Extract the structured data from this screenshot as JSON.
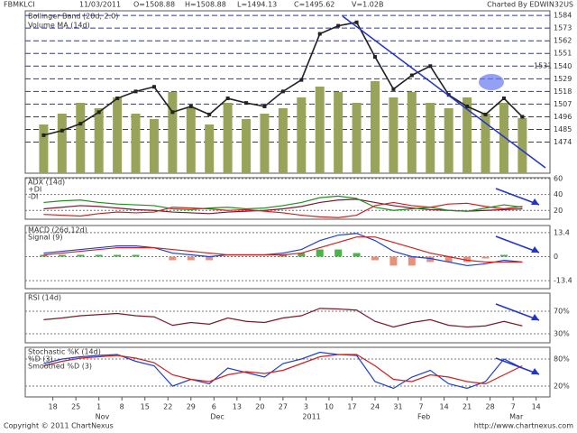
{
  "chart_data": [
    {
      "type": "price",
      "header": {
        "symbol": "FBMKLCI",
        "date": "11/03/2011",
        "open": "O=1508.88",
        "high": "H=1508.88",
        "low": "L=1494.13",
        "close": "C=1495.62",
        "volume": "V=1.02B",
        "credit": "Charted By EDWIN32US"
      },
      "legend": [
        "Bollinger Band (20d, 2.0)",
        "Volume MA (14d)"
      ],
      "annotation": "1531",
      "x": [
        3,
        7,
        11,
        15,
        19,
        23,
        27,
        31,
        35,
        39,
        43,
        47,
        51,
        55,
        59,
        63,
        67,
        71,
        75,
        79,
        83,
        87,
        91,
        95,
        99,
        103,
        107
      ],
      "close": [
        1480,
        1484,
        1490,
        1500,
        1512,
        1518,
        1522,
        1500,
        1505,
        1498,
        1512,
        1508,
        1505,
        1518,
        1528,
        1568,
        1575,
        1578,
        1548,
        1520,
        1532,
        1540,
        1515,
        1505,
        1498,
        1512,
        1496
      ],
      "volume": [
        900,
        1100,
        1300,
        1200,
        1400,
        1100,
        1000,
        1500,
        1200,
        900,
        1300,
        1000,
        1100,
        1200,
        1400,
        1600,
        1500,
        1300,
        1700,
        1400,
        1500,
        1300,
        1200,
        1400,
        1100,
        1300,
        1020
      ],
      "color": "#222222",
      "volume_color": "#9aa35a",
      "volume_lim": [
        0,
        3000
      ],
      "xlim": [
        -1,
        113
      ],
      "ylim": [
        1447,
        1588
      ],
      "yticks": [
        1474,
        1485,
        1496,
        1507,
        1518,
        1529,
        1540,
        1551,
        1562,
        1573,
        1584
      ],
      "grid": true,
      "xticks": [
        {
          "value": 5,
          "label": "18"
        },
        {
          "value": 10,
          "label": "25"
        },
        {
          "value": 15,
          "label": "1"
        },
        {
          "value": 20,
          "label": "8"
        },
        {
          "value": 25,
          "label": "15"
        },
        {
          "value": 30,
          "label": "22"
        },
        {
          "value": 35,
          "label": "29"
        },
        {
          "value": 40,
          "label": "6"
        },
        {
          "value": 45,
          "label": "13"
        },
        {
          "value": 50,
          "label": "20"
        },
        {
          "value": 55,
          "label": "27"
        },
        {
          "value": 60,
          "label": "3"
        },
        {
          "value": 65,
          "label": "10"
        },
        {
          "value": 70,
          "label": "17"
        },
        {
          "value": 75,
          "label": "24"
        },
        {
          "value": 80,
          "label": "31"
        },
        {
          "value": 85,
          "label": "7"
        },
        {
          "value": 90,
          "label": "14"
        },
        {
          "value": 95,
          "label": "21"
        },
        {
          "value": 100,
          "label": "28"
        },
        {
          "value": 105,
          "label": "7"
        },
        {
          "value": 110,
          "label": "14"
        }
      ],
      "months": [
        {
          "value": 15,
          "label": "Nov"
        },
        {
          "value": 40,
          "label": "Dec"
        },
        {
          "value": 60,
          "label": "2011"
        },
        {
          "value": 85,
          "label": "Feb"
        },
        {
          "value": 105,
          "label": "Mar"
        }
      ],
      "footer": [
        "Copyright © 2011 ChartNexus",
        "http://www.chartnexus.com"
      ]
    },
    {
      "type": "line",
      "title": "ADX (14d)",
      "ylim": [
        9,
        61
      ],
      "yticks": [
        20,
        40,
        60
      ],
      "series": [
        {
          "name": "ADX (14d)",
          "color": "#7a1a2a",
          "values": [
            22,
            24,
            26,
            25,
            23,
            21,
            20,
            18,
            17,
            16,
            18,
            19,
            20,
            22,
            25,
            30,
            33,
            34,
            30,
            26,
            23,
            21,
            20,
            19,
            20,
            21,
            22
          ]
        },
        {
          "name": "+DI",
          "color": "#1f8f1f",
          "values": [
            30,
            32,
            33,
            30,
            28,
            27,
            26,
            22,
            21,
            23,
            24,
            22,
            23,
            26,
            30,
            36,
            38,
            35,
            24,
            20,
            22,
            24,
            20,
            19,
            23,
            27,
            24
          ]
        },
        {
          "name": "-DI",
          "color": "#d02020",
          "values": [
            15,
            14,
            13,
            16,
            18,
            17,
            18,
            24,
            23,
            22,
            20,
            21,
            19,
            17,
            14,
            12,
            11,
            14,
            26,
            30,
            26,
            24,
            28,
            29,
            25,
            22,
            25
          ]
        }
      ]
    },
    {
      "type": "line",
      "title": "MACD (26d,12d)",
      "ylim": [
        -17.9,
        17.4
      ],
      "yticks": [
        -13.4,
        0,
        13.4
      ],
      "histogram": [
        1,
        1,
        1,
        1,
        1,
        1,
        0,
        -2,
        -2,
        -2,
        0,
        0,
        0,
        1,
        2,
        4,
        4,
        2,
        -2,
        -5,
        -5,
        -3,
        -3,
        -3,
        -1,
        1,
        0
      ],
      "hist_colors": [
        "#49b449",
        "#e8907a"
      ],
      "series": [
        {
          "name": "MACD (26d,12d)",
          "color": "#2040d0",
          "values": [
            2,
            3,
            4,
            5,
            6,
            6,
            5,
            2,
            1,
            0,
            1,
            1,
            1,
            2,
            4,
            9,
            12,
            13,
            9,
            3,
            0,
            -1,
            -3,
            -5,
            -4,
            -2,
            -3
          ]
        },
        {
          "name": "Signal (9)",
          "color": "#d02020",
          "values": [
            1,
            2,
            3,
            4,
            5,
            5,
            5,
            4,
            3,
            2,
            1,
            1,
            1,
            1,
            2,
            5,
            8,
            11,
            11,
            8,
            5,
            2,
            0,
            -2,
            -3,
            -3,
            -3
          ]
        }
      ]
    },
    {
      "type": "line",
      "title": "RSI (14d)",
      "ylim": [
        14,
        102
      ],
      "yticks": [
        {
          "value": 30,
          "label": "30%"
        },
        {
          "value": 70,
          "label": "70%"
        }
      ],
      "series": [
        {
          "name": "RSI (14d)",
          "color": "#7a1a2a",
          "values": [
            55,
            58,
            62,
            64,
            66,
            62,
            60,
            45,
            50,
            47,
            58,
            52,
            50,
            58,
            62,
            75,
            74,
            72,
            52,
            42,
            50,
            55,
            45,
            42,
            44,
            52,
            44
          ]
        }
      ]
    },
    {
      "type": "line",
      "title": "Stochastic %K (14d)",
      "ylim": [
        -4,
        106
      ],
      "yticks": [
        {
          "value": 20,
          "label": "20%"
        },
        {
          "value": 80,
          "label": "80%"
        }
      ],
      "series": [
        {
          "name": "%D (3)",
          "color": "#2040d0",
          "values": [
            70,
            80,
            85,
            88,
            90,
            75,
            65,
            20,
            35,
            25,
            60,
            50,
            40,
            70,
            80,
            95,
            90,
            88,
            30,
            15,
            40,
            55,
            25,
            15,
            30,
            80,
            60
          ]
        },
        {
          "name": "Smoothed %D (3)",
          "color": "#d02020",
          "values": [
            65,
            75,
            82,
            85,
            88,
            82,
            72,
            45,
            35,
            30,
            45,
            52,
            48,
            55,
            70,
            85,
            90,
            90,
            65,
            35,
            30,
            45,
            40,
            30,
            25,
            45,
            65
          ]
        }
      ]
    }
  ]
}
